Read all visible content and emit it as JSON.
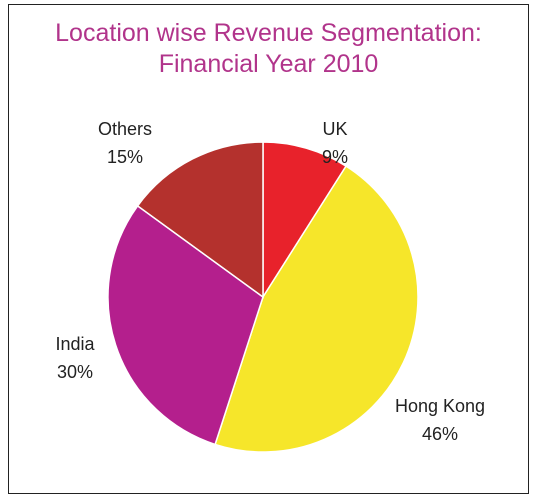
{
  "chart_data": {
    "type": "pie",
    "title": "Location wise Revenue Segmentation: Financial Year 2010",
    "categories": [
      "UK",
      "Hong Kong",
      "India",
      "Others"
    ],
    "values": [
      9,
      46,
      30,
      15
    ],
    "value_labels": [
      "9%",
      "46%",
      "30%",
      "15%"
    ],
    "colors": [
      "#e8222b",
      "#f6e62a",
      "#b41f8d",
      "#b4312d"
    ]
  }
}
